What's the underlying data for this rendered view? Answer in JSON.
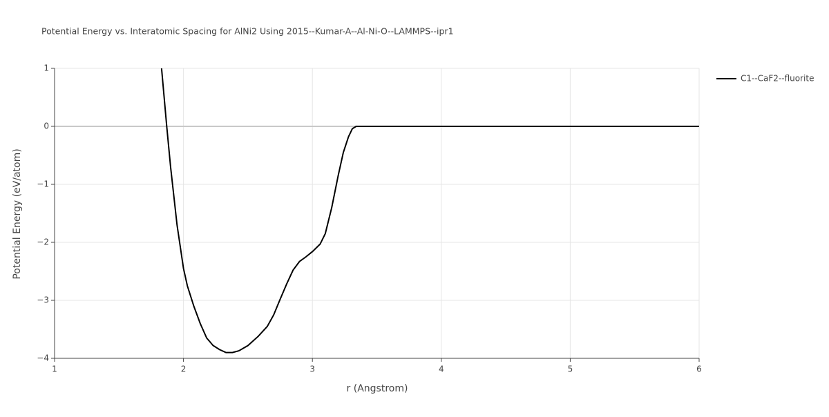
{
  "chart_data": {
    "type": "line",
    "title": "Potential Energy vs. Interatomic Spacing for AlNi2 Using 2015--Kumar-A--Al-Ni-O--LAMMPS--ipr1",
    "x_label": "r (Angstrom)",
    "y_label": "Potential Energy (eV/atom)",
    "x": [
      1.83,
      1.87,
      1.9,
      1.95,
      2.0,
      2.03,
      2.08,
      2.13,
      2.18,
      2.23,
      2.28,
      2.33,
      2.38,
      2.43,
      2.5,
      2.58,
      2.65,
      2.7,
      2.75,
      2.8,
      2.85,
      2.9,
      2.95,
      3.0,
      3.06,
      3.1,
      3.15,
      3.2,
      3.24,
      3.28,
      3.31,
      3.34,
      3.4,
      6.0
    ],
    "series": [
      {
        "name": "C1--CaF2--fluorite",
        "color": "#000000",
        "values": [
          1.0,
          0.0,
          -0.7,
          -1.7,
          -2.45,
          -2.75,
          -3.1,
          -3.4,
          -3.65,
          -3.78,
          -3.85,
          -3.9,
          -3.9,
          -3.87,
          -3.78,
          -3.62,
          -3.45,
          -3.25,
          -2.98,
          -2.72,
          -2.48,
          -2.33,
          -2.25,
          -2.16,
          -2.03,
          -1.85,
          -1.4,
          -0.85,
          -0.45,
          -0.18,
          -0.04,
          0,
          0,
          0
        ]
      }
    ],
    "xlim": [
      1,
      6
    ],
    "xticks": [
      1,
      2,
      3,
      4,
      5,
      6
    ],
    "ylim": [
      -4,
      1
    ],
    "yticks": [
      {
        "value": -4,
        "label": "−4"
      },
      {
        "value": -3,
        "label": "−3"
      },
      {
        "value": -2,
        "label": "−2"
      },
      {
        "value": -1,
        "label": "−1"
      },
      0,
      1
    ],
    "grid": true,
    "legend": "right"
  }
}
